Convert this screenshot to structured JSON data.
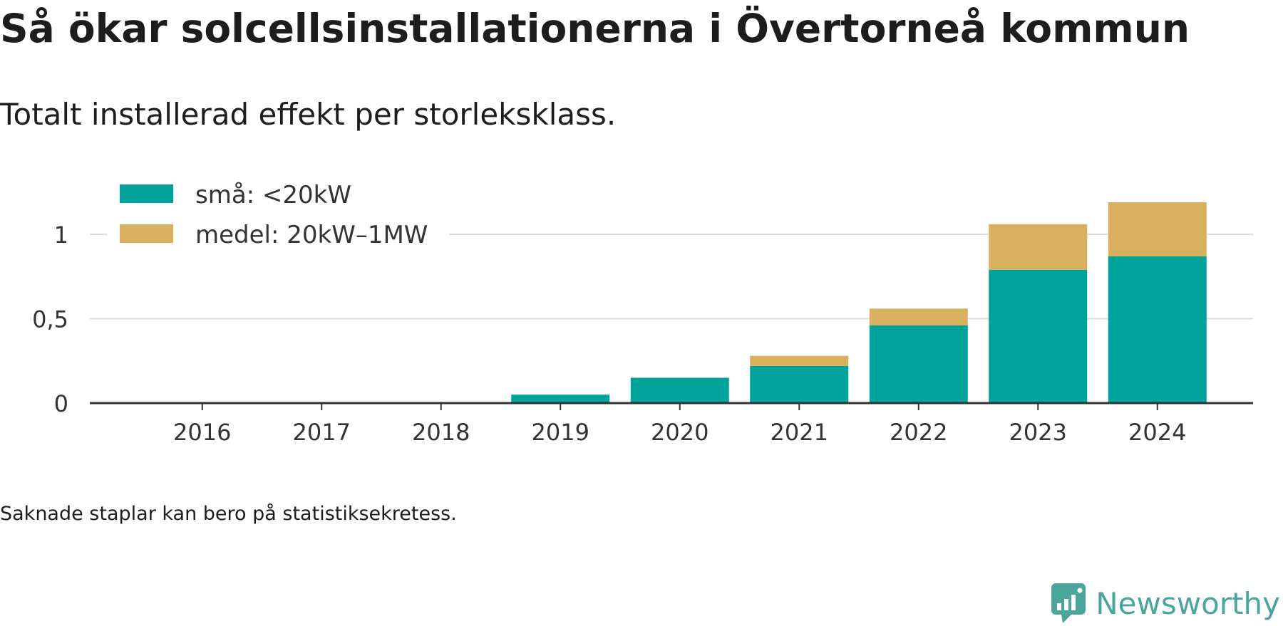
{
  "title": "Så ökar solcellsinstallationerna i Övertorneå kommun",
  "subtitle": "Totalt installerad effekt per storleksklass.",
  "note": "Saknade staplar kan bero på statistiksekretess.",
  "brand": "Newsworthy",
  "colors": {
    "sma": "#00a39a",
    "medel": "#d8b05e",
    "grid": "#dddddd",
    "axis": "#333333",
    "brand": "#4aa59c"
  },
  "chart_data": {
    "type": "bar",
    "stacked": true,
    "categories": [
      "2016",
      "2017",
      "2018",
      "2019",
      "2020",
      "2021",
      "2022",
      "2023",
      "2024"
    ],
    "series": [
      {
        "name": "små: <20kW",
        "values": [
          0,
          0,
          0,
          0.05,
          0.15,
          0.22,
          0.46,
          0.79,
          0.87
        ]
      },
      {
        "name": "medel: 20kW–1MW",
        "values": [
          0,
          0,
          0,
          0,
          0,
          0.06,
          0.1,
          0.27,
          0.32
        ]
      }
    ],
    "ylim": [
      0,
      1.2
    ],
    "yticks": [
      0,
      0.5,
      1
    ],
    "ytick_labels": [
      "0",
      "0,5",
      "1"
    ],
    "grid": true,
    "legend_position": "top-left",
    "xlabel": "",
    "ylabel": ""
  }
}
